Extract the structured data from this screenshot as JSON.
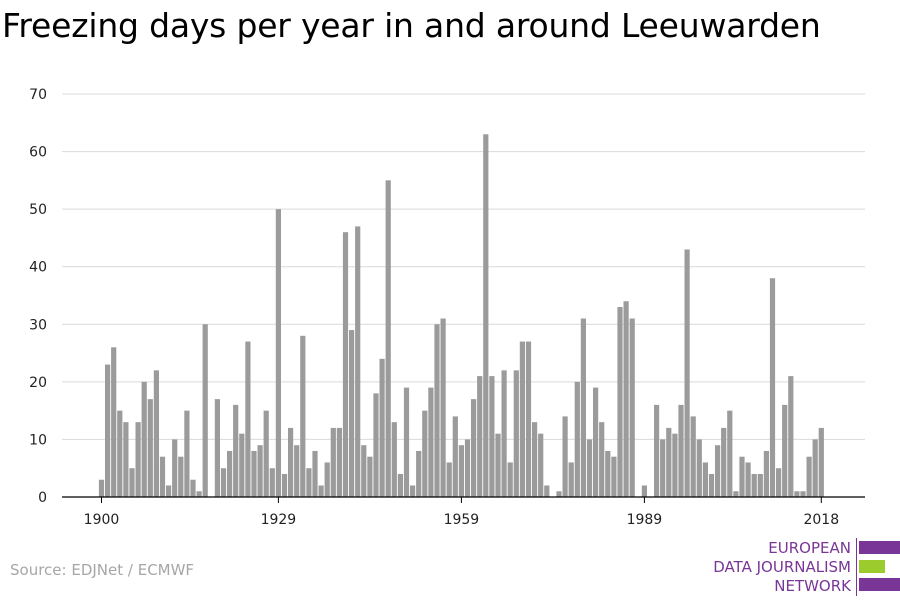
{
  "chart_data": {
    "type": "bar",
    "title": "Freezing days per year in and around Leeuwarden",
    "xlabel": "",
    "ylabel": "",
    "ylim": [
      0,
      70
    ],
    "yticks": [
      "0",
      "10",
      "20",
      "30",
      "40",
      "50",
      "60",
      "70"
    ],
    "x_tick_labels": [
      "1900",
      "1929",
      "1959",
      "1989",
      "2018"
    ],
    "grid": true,
    "categories": [
      1900,
      1901,
      1902,
      1903,
      1904,
      1905,
      1906,
      1907,
      1908,
      1909,
      1910,
      1911,
      1912,
      1913,
      1914,
      1915,
      1916,
      1917,
      1918,
      1919,
      1920,
      1921,
      1922,
      1923,
      1924,
      1925,
      1926,
      1927,
      1928,
      1929,
      1930,
      1931,
      1932,
      1933,
      1934,
      1935,
      1936,
      1937,
      1938,
      1939,
      1940,
      1941,
      1942,
      1943,
      1944,
      1945,
      1946,
      1947,
      1948,
      1949,
      1950,
      1951,
      1952,
      1953,
      1954,
      1955,
      1956,
      1957,
      1958,
      1959,
      1960,
      1961,
      1962,
      1963,
      1964,
      1965,
      1966,
      1967,
      1968,
      1969,
      1970,
      1971,
      1972,
      1973,
      1974,
      1975,
      1976,
      1977,
      1978,
      1979,
      1980,
      1981,
      1982,
      1983,
      1984,
      1985,
      1986,
      1987,
      1988,
      1989,
      1990,
      1991,
      1992,
      1993,
      1994,
      1995,
      1996,
      1997,
      1998,
      1999,
      2000,
      2001,
      2002,
      2003,
      2004,
      2005,
      2006,
      2007,
      2008,
      2009,
      2010,
      2011,
      2012,
      2013,
      2014,
      2015,
      2016,
      2017,
      2018
    ],
    "values": [
      3,
      23,
      26,
      15,
      13,
      5,
      13,
      20,
      17,
      22,
      7,
      2,
      10,
      7,
      15,
      3,
      1,
      30,
      0,
      17,
      5,
      8,
      16,
      11,
      27,
      8,
      9,
      15,
      5,
      50,
      4,
      12,
      9,
      28,
      5,
      8,
      2,
      6,
      12,
      12,
      46,
      29,
      47,
      9,
      7,
      18,
      24,
      55,
      13,
      4,
      19,
      2,
      8,
      15,
      19,
      30,
      31,
      6,
      14,
      9,
      10,
      17,
      21,
      63,
      21,
      11,
      22,
      6,
      22,
      27,
      27,
      13,
      11,
      2,
      0,
      1,
      14,
      6,
      20,
      31,
      10,
      19,
      13,
      8,
      7,
      33,
      34,
      31,
      0,
      2,
      0,
      16,
      10,
      12,
      11,
      16,
      43,
      14,
      10,
      6,
      4,
      9,
      12,
      15,
      1,
      7,
      6,
      4,
      4,
      8,
      38,
      5,
      16,
      21,
      1,
      1,
      7,
      10,
      12
    ]
  },
  "source": "Source: EDJNet / ECMWF",
  "logo": {
    "lines": [
      "EUROPEAN",
      "DATA JOURNALISM",
      "NETWORK"
    ],
    "colors": {
      "purple": "#7a3696",
      "green": "#9bcb2d"
    }
  },
  "colors": {
    "bar": "#9b9b9b",
    "grid": "#d9d9d9",
    "axis": "#000000"
  }
}
